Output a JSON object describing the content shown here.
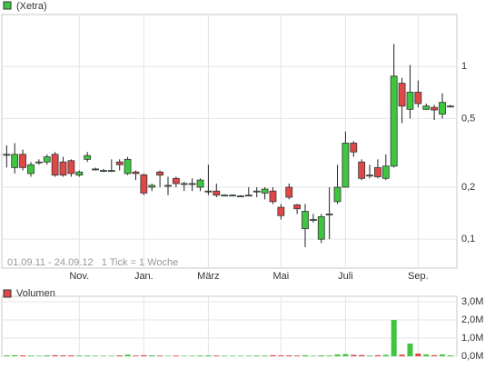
{
  "chart_data": [
    {
      "type": "candlestick",
      "legend": "(Xetra)",
      "note": "01.09.11 - 24.09.12   1 Tick = 1 Woche",
      "up_color": "#3fc63f",
      "down_color": "#e04848",
      "log_scale": true,
      "grid": true,
      "xlim": [
        -0.6,
        55.8
      ],
      "xticks": [
        {
          "value": 9,
          "label": "Nov."
        },
        {
          "value": 17,
          "label": "Jan."
        },
        {
          "value": 25,
          "label": "März"
        },
        {
          "value": 34,
          "label": "Mai"
        },
        {
          "value": 42,
          "label": "Juli"
        },
        {
          "value": 51,
          "label": "Sep."
        }
      ],
      "ylim": [
        0.068,
        2
      ],
      "yticks": [
        {
          "value": 0.1,
          "label": "0,1"
        },
        {
          "value": 0.2,
          "label": "0,2"
        },
        {
          "value": 0.5,
          "label": "0,5"
        },
        1
      ],
      "open": [
        0.31,
        0.26,
        0.31,
        0.24,
        0.28,
        0.28,
        0.31,
        0.28,
        0.285,
        0.235,
        0.29,
        0.255,
        0.25,
        0.25,
        0.28,
        0.24,
        0.245,
        0.236,
        0.2,
        0.245,
        0.205,
        0.225,
        0.21,
        0.21,
        0.2,
        0.19,
        0.19,
        0.18,
        0.18,
        0.178,
        0.18,
        0.19,
        0.185,
        0.19,
        0.153,
        0.2,
        0.158,
        0.115,
        0.13,
        0.1,
        0.14,
        0.165,
        0.2,
        0.36,
        0.28,
        0.235,
        0.26,
        0.225,
        0.265,
        0.8,
        0.565,
        0.71,
        0.565,
        0.58,
        0.53,
        0.59
      ],
      "high": [
        0.35,
        0.36,
        0.33,
        0.28,
        0.29,
        0.31,
        0.32,
        0.3,
        0.29,
        0.25,
        0.32,
        0.26,
        0.255,
        0.29,
        0.29,
        0.3,
        0.25,
        0.24,
        0.21,
        0.25,
        0.23,
        0.23,
        0.215,
        0.225,
        0.225,
        0.27,
        0.21,
        0.182,
        0.182,
        0.18,
        0.2,
        0.2,
        0.2,
        0.2,
        0.16,
        0.21,
        0.16,
        0.16,
        0.14,
        0.14,
        0.2,
        0.27,
        0.42,
        0.37,
        0.29,
        0.27,
        0.29,
        0.31,
        1.35,
        0.86,
        1.02,
        0.83,
        0.61,
        0.6,
        0.7,
        0.6
      ],
      "low": [
        0.26,
        0.24,
        0.25,
        0.23,
        0.27,
        0.27,
        0.23,
        0.23,
        0.23,
        0.23,
        0.28,
        0.25,
        0.245,
        0.245,
        0.25,
        0.235,
        0.22,
        0.18,
        0.19,
        0.2,
        0.18,
        0.2,
        0.19,
        0.19,
        0.19,
        0.18,
        0.175,
        0.178,
        0.178,
        0.175,
        0.178,
        0.175,
        0.17,
        0.16,
        0.13,
        0.17,
        0.14,
        0.09,
        0.125,
        0.095,
        0.1,
        0.16,
        0.2,
        0.3,
        0.22,
        0.225,
        0.225,
        0.22,
        0.26,
        0.47,
        0.5,
        0.58,
        0.56,
        0.49,
        0.5,
        0.585
      ],
      "close": [
        0.31,
        0.31,
        0.26,
        0.27,
        0.28,
        0.3,
        0.235,
        0.235,
        0.24,
        0.245,
        0.305,
        0.255,
        0.25,
        0.25,
        0.27,
        0.29,
        0.24,
        0.185,
        0.205,
        0.235,
        0.205,
        0.21,
        0.21,
        0.21,
        0.22,
        0.19,
        0.18,
        0.18,
        0.18,
        0.178,
        0.18,
        0.19,
        0.195,
        0.165,
        0.137,
        0.175,
        0.15,
        0.145,
        0.13,
        0.135,
        0.14,
        0.2,
        0.36,
        0.32,
        0.225,
        0.235,
        0.23,
        0.265,
        0.88,
        0.59,
        0.71,
        0.61,
        0.59,
        0.56,
        0.62,
        0.59
      ]
    },
    {
      "type": "bar",
      "legend": "Volumen",
      "grid": true,
      "ylim": [
        0,
        3300000
      ],
      "yticks": [
        {
          "value": 0,
          "label": "0,0M"
        },
        {
          "value": 1000000,
          "label": "1,0M"
        },
        {
          "value": 2000000,
          "label": "2,0M"
        },
        {
          "value": 3000000,
          "label": "3,0M"
        }
      ],
      "values": [
        50000,
        60000,
        50000,
        40000,
        30000,
        50000,
        60000,
        50000,
        50000,
        40000,
        40000,
        30000,
        30000,
        30000,
        50000,
        90000,
        40000,
        60000,
        50000,
        40000,
        30000,
        40000,
        30000,
        30000,
        40000,
        50000,
        40000,
        30000,
        30000,
        30000,
        30000,
        40000,
        40000,
        60000,
        50000,
        50000,
        40000,
        60000,
        30000,
        50000,
        40000,
        100000,
        120000,
        80000,
        70000,
        40000,
        60000,
        80000,
        2000000,
        90000,
        700000,
        150000,
        100000,
        60000,
        100000,
        50000
      ]
    }
  ]
}
